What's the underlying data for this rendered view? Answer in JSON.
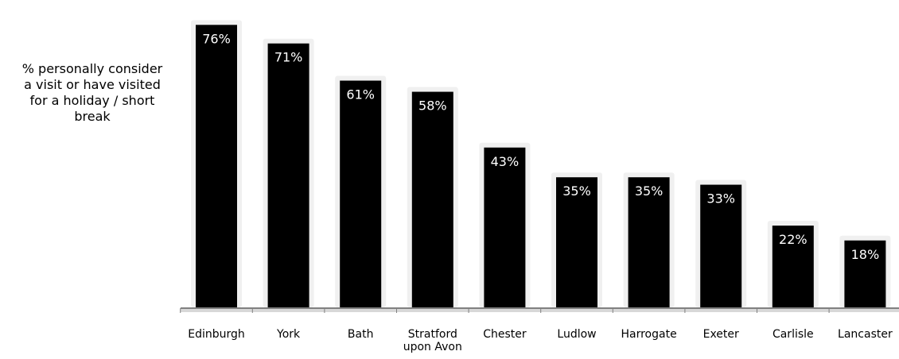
{
  "chart_data": {
    "type": "bar",
    "series_label": "% personally consider\na visit or have visited\nfor a holiday / short\nbreak",
    "categories": [
      "Edinburgh",
      "York",
      "Bath",
      "Stratford\nupon Avon",
      "Chester",
      "Ludlow",
      "Harrogate",
      "Exeter",
      "Carlisle",
      "Lancaster"
    ],
    "values": [
      76,
      71,
      61,
      58,
      43,
      35,
      35,
      33,
      22,
      18
    ],
    "data_labels": [
      "76%",
      "71%",
      "61%",
      "58%",
      "43%",
      "35%",
      "35%",
      "33%",
      "22%",
      "18%"
    ],
    "value_unit": "%",
    "ylim": [
      0,
      80
    ],
    "grid": false,
    "bar_color": "#000000",
    "bar_shadow_color": "#f0f0f0",
    "label_color": "#ffffff",
    "axis_color": "#808080"
  }
}
